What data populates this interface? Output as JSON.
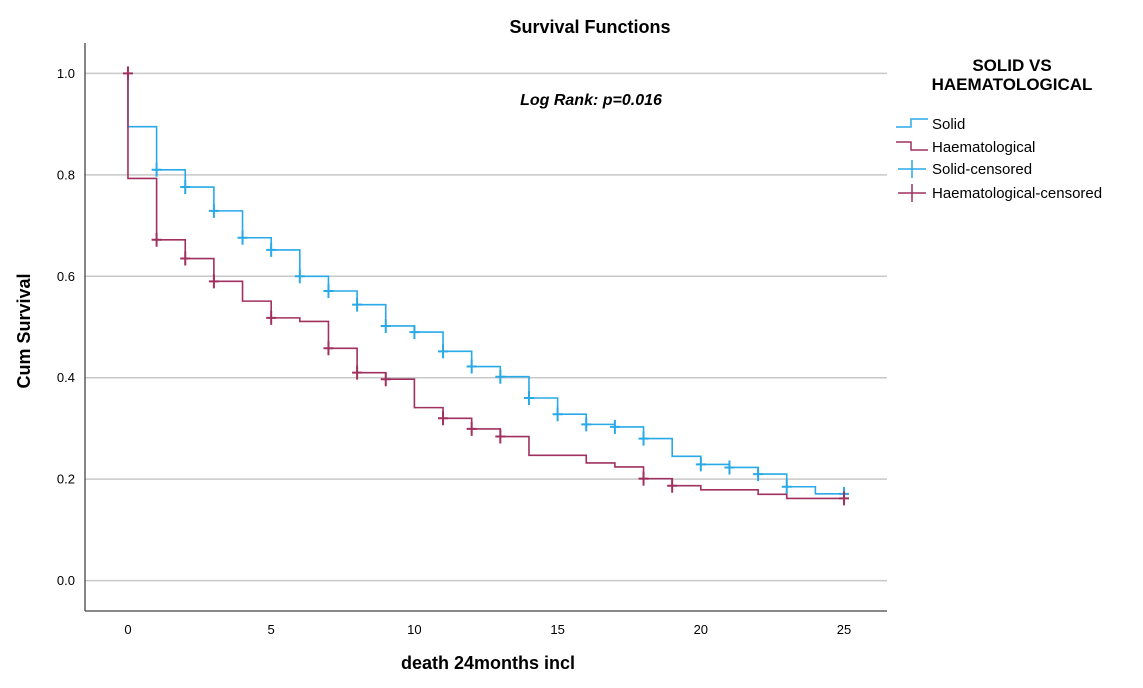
{
  "chart_data": {
    "type": "line",
    "step": true,
    "title": "Survival Functions",
    "xlabel": "death 24months incl",
    "ylabel": "Cum Survival",
    "xlim": [
      -1.5,
      26.5
    ],
    "ylim": [
      -0.06,
      1.06
    ],
    "xticks": [
      0,
      5,
      10,
      15,
      20,
      25
    ],
    "xtick_labels": [
      "0",
      "5",
      "10",
      "15",
      "20",
      "25"
    ],
    "yticks": [
      0.0,
      0.2,
      0.4,
      0.6,
      0.8,
      1.0
    ],
    "ytick_labels": [
      "0.0",
      "0.2",
      "0.4",
      "0.6",
      "0.8",
      "1.0"
    ],
    "grid": "horizontal",
    "annotation": "Log Rank: p=0.016",
    "legend": {
      "title_lines": [
        "SOLID VS",
        "HAEMATOLOGICAL"
      ],
      "placement": "right",
      "entries": [
        "Solid",
        "Haematological",
        "Solid-censored",
        "Haematological-censored"
      ]
    },
    "series": [
      {
        "name": "Solid",
        "color": "#29a9e6",
        "x": [
          0,
          1,
          2,
          3,
          4,
          5,
          6,
          7,
          8,
          9,
          10,
          11,
          12,
          13,
          14,
          15,
          16,
          17,
          18,
          19,
          20,
          21,
          22,
          23,
          24,
          25
        ],
        "y": [
          0.895,
          0.81,
          0.776,
          0.729,
          0.676,
          0.652,
          0.6,
          0.571,
          0.544,
          0.502,
          0.49,
          0.452,
          0.422,
          0.402,
          0.36,
          0.328,
          0.308,
          0.303,
          0.28,
          0.245,
          0.229,
          0.223,
          0.21,
          0.185,
          0.171,
          0.171
        ],
        "censored": [
          {
            "x": 1,
            "y": 0.81
          },
          {
            "x": 2,
            "y": 0.776
          },
          {
            "x": 3,
            "y": 0.729
          },
          {
            "x": 4,
            "y": 0.676
          },
          {
            "x": 5,
            "y": 0.652
          },
          {
            "x": 6,
            "y": 0.6
          },
          {
            "x": 7,
            "y": 0.571
          },
          {
            "x": 8,
            "y": 0.544
          },
          {
            "x": 9,
            "y": 0.502
          },
          {
            "x": 10,
            "y": 0.49
          },
          {
            "x": 11,
            "y": 0.452
          },
          {
            "x": 12,
            "y": 0.422
          },
          {
            "x": 13,
            "y": 0.402
          },
          {
            "x": 14,
            "y": 0.36
          },
          {
            "x": 15,
            "y": 0.328
          },
          {
            "x": 16,
            "y": 0.308
          },
          {
            "x": 17,
            "y": 0.303
          },
          {
            "x": 18,
            "y": 0.28
          },
          {
            "x": 20,
            "y": 0.229
          },
          {
            "x": 21,
            "y": 0.223
          },
          {
            "x": 22,
            "y": 0.21
          },
          {
            "x": 23,
            "y": 0.185
          },
          {
            "x": 25,
            "y": 0.171
          }
        ]
      },
      {
        "name": "Haematological",
        "color": "#a0305f",
        "x": [
          0,
          1,
          2,
          3,
          4,
          5,
          6,
          7,
          8,
          9,
          10,
          11,
          12,
          13,
          14,
          15,
          16,
          17,
          18,
          19,
          20,
          21,
          22,
          23,
          24,
          25
        ],
        "y": [
          0.793,
          0.672,
          0.635,
          0.59,
          0.551,
          0.518,
          0.511,
          0.458,
          0.41,
          0.397,
          0.341,
          0.32,
          0.299,
          0.284,
          0.247,
          0.247,
          0.232,
          0.224,
          0.201,
          0.187,
          0.179,
          0.179,
          0.17,
          0.162,
          0.162,
          0.162
        ],
        "censored": [
          {
            "x": 0,
            "y": 1.0
          },
          {
            "x": 1,
            "y": 0.672
          },
          {
            "x": 2,
            "y": 0.635
          },
          {
            "x": 3,
            "y": 0.59
          },
          {
            "x": 5,
            "y": 0.518
          },
          {
            "x": 7,
            "y": 0.458
          },
          {
            "x": 8,
            "y": 0.41
          },
          {
            "x": 9,
            "y": 0.397
          },
          {
            "x": 11,
            "y": 0.32
          },
          {
            "x": 12,
            "y": 0.299
          },
          {
            "x": 13,
            "y": 0.284
          },
          {
            "x": 18,
            "y": 0.201
          },
          {
            "x": 19,
            "y": 0.187
          },
          {
            "x": 25,
            "y": 0.162
          }
        ]
      }
    ]
  }
}
